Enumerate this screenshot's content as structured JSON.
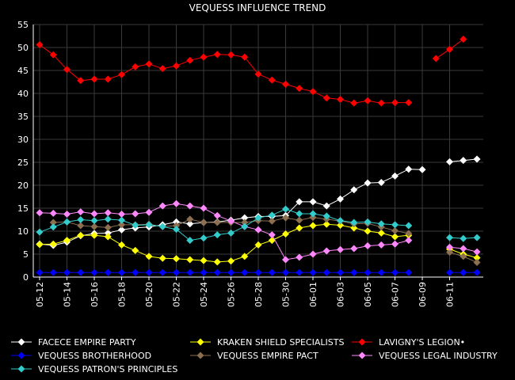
{
  "chart_data": {
    "type": "line",
    "title": "VEQUESS INFLUENCE TREND",
    "xlabel": "",
    "ylabel": "",
    "ylim": [
      0,
      55
    ],
    "yticks": [
      0,
      5,
      10,
      15,
      20,
      25,
      30,
      35,
      40,
      45,
      50,
      55
    ],
    "grid": true,
    "legend_position": "bottom",
    "x_tick_labels": [
      "05-12",
      "05-14",
      "05-16",
      "05-18",
      "05-20",
      "05-22",
      "05-24",
      "05-26",
      "05-28",
      "05-30",
      "06-01",
      "06-03",
      "06-05",
      "06-07",
      "06-09",
      "06-11"
    ],
    "x": [
      "05-12",
      "05-13",
      "05-14",
      "05-15",
      "05-16",
      "05-17",
      "05-18",
      "05-19",
      "05-20",
      "05-21",
      "05-22",
      "05-23",
      "05-24",
      "05-25",
      "05-26",
      "05-27",
      "05-28",
      "05-29",
      "05-30",
      "05-31",
      "06-01",
      "06-02",
      "06-03",
      "06-04",
      "06-05",
      "06-06",
      "06-07",
      "06-08",
      "06-09",
      "06-10",
      "06-11",
      "06-12",
      "06-13"
    ],
    "series": [
      {
        "name": "FACECE EMPIRE PARTY",
        "color": "#ffffff",
        "values": [
          7.2,
          6.9,
          7.6,
          9.0,
          9.5,
          9.6,
          10.3,
          10.7,
          10.9,
          11.4,
          12.0,
          11.6,
          11.9,
          12.0,
          12.4,
          12.9,
          13.2,
          13.2,
          13.4,
          16.4,
          16.4,
          15.5,
          17.0,
          19.0,
          20.5,
          20.6,
          22.0,
          23.5,
          23.4,
          null,
          25.1,
          25.4,
          25.7
        ]
      },
      {
        "name": "KRAKEN SHIELD SPECIALISTS",
        "color": "#ffff00",
        "values": [
          7.1,
          7.2,
          8.0,
          9.1,
          9.1,
          8.8,
          7.0,
          5.8,
          4.5,
          4.1,
          4.0,
          3.8,
          3.6,
          3.3,
          3.5,
          4.5,
          7.0,
          8.0,
          9.4,
          10.7,
          11.2,
          11.5,
          11.3,
          10.7,
          10.0,
          9.6,
          8.8,
          9.1,
          null,
          null,
          6.1,
          5.0,
          4.2
        ]
      },
      {
        "name": "LAVIGNY'S LEGION•",
        "color": "#ff0000",
        "values": [
          50.6,
          48.4,
          45.2,
          42.8,
          43.1,
          43.1,
          44.1,
          45.8,
          46.4,
          45.4,
          46.0,
          47.2,
          47.9,
          48.5,
          48.4,
          47.9,
          44.2,
          42.9,
          42.0,
          41.1,
          40.4,
          39.0,
          38.7,
          37.9,
          38.4,
          37.9,
          38.0,
          38.0,
          null,
          47.6,
          49.6,
          51.8,
          null
        ]
      },
      {
        "name": "VEQUESS BROTHERHOOD",
        "color": "#0000ff",
        "values": [
          1.0,
          1.0,
          1.0,
          1.0,
          1.0,
          1.0,
          1.0,
          1.0,
          1.0,
          1.0,
          1.0,
          1.0,
          1.0,
          1.0,
          1.0,
          1.0,
          1.0,
          1.0,
          1.0,
          1.0,
          1.0,
          1.0,
          1.0,
          1.0,
          1.0,
          1.0,
          1.0,
          1.0,
          null,
          null,
          1.0,
          1.0,
          1.0
        ]
      },
      {
        "name": "VEQUESS EMPIRE PACT",
        "color": "#8b6f50",
        "values": [
          null,
          11.9,
          12.0,
          11.2,
          11.0,
          10.8,
          11.4,
          11.4,
          11.5,
          11.0,
          11.2,
          12.6,
          11.9,
          11.9,
          11.9,
          11.9,
          12.3,
          12.2,
          12.9,
          12.4,
          13.0,
          12.6,
          12.2,
          11.6,
          11.7,
          10.9,
          10.1,
          9.5,
          null,
          null,
          5.4,
          4.5,
          3.2
        ]
      },
      {
        "name": "VEQUESS LEGAL INDUSTRY",
        "color": "#ff88ff",
        "values": [
          14.0,
          13.9,
          13.7,
          14.2,
          13.8,
          14.0,
          13.7,
          13.8,
          14.1,
          15.5,
          16.0,
          15.5,
          15.0,
          13.4,
          12.2,
          11.0,
          10.3,
          9.2,
          3.8,
          4.3,
          5.0,
          5.7,
          6.0,
          6.2,
          6.8,
          7.0,
          7.2,
          8.0,
          null,
          null,
          6.5,
          6.2,
          5.5
        ]
      },
      {
        "name": "VEQUESS PATRON'S PRINCIPLES",
        "color": "#33cccc",
        "values": [
          9.8,
          10.9,
          12.0,
          12.5,
          12.3,
          12.6,
          12.4,
          11.3,
          11.4,
          11.0,
          10.4,
          8.0,
          8.5,
          9.2,
          9.6,
          11.0,
          12.9,
          13.5,
          14.8,
          13.8,
          13.8,
          13.3,
          12.3,
          11.9,
          12.0,
          11.6,
          11.4,
          11.2,
          null,
          null,
          8.6,
          8.4,
          8.6
        ]
      }
    ]
  }
}
